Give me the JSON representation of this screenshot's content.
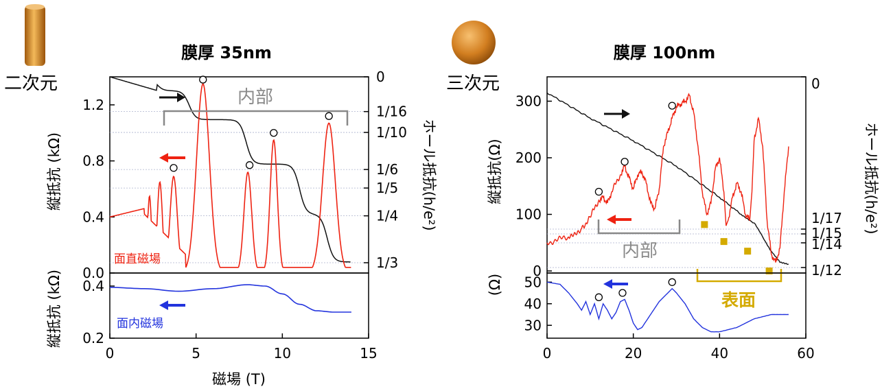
{
  "colors": {
    "red": "#ee2211",
    "black": "#111111",
    "blue": "#2233dd",
    "gray": "#888888",
    "gold": "#d4aa00",
    "ref_line": "#aab0cc"
  },
  "icons": {
    "left": "cylinder-copper-icon",
    "right": "sphere-copper-icon"
  },
  "chart_data": [
    {
      "type": "line",
      "title": "膜厚 35nm",
      "dimension_label": "二次元",
      "xlabel": "磁場 (T)",
      "xlim": [
        0,
        15
      ],
      "x_ticks": [
        "0",
        "5",
        "10",
        "15"
      ],
      "top_panel": {
        "ylabel": "縦抵抗 (kΩ)",
        "ylim": [
          0,
          1.4
        ],
        "y_ticks": [
          "0.0",
          "0.4",
          "0.8",
          "1.2"
        ],
        "right_ylabel": "ホール抵抗(h/e²)",
        "right_ticks": [
          "0",
          "1/16",
          "1/10",
          "1/6",
          "1/5",
          "1/4",
          "1/3"
        ],
        "series_labels": {
          "red": "面直磁場"
        },
        "annotation": "内部",
        "peaks_open_circles": [
          [
            3.7,
            0.75
          ],
          [
            5.4,
            1.38
          ],
          [
            8.1,
            0.77
          ],
          [
            9.5,
            1.0
          ],
          [
            12.7,
            1.12
          ]
        ],
        "peaks_red": [
          [
            2.3,
            0.55,
            0.15
          ],
          [
            2.9,
            0.65,
            0.2
          ],
          [
            3.7,
            0.69,
            0.28
          ],
          [
            5.4,
            1.35,
            0.5
          ],
          [
            8.0,
            0.72,
            0.3
          ],
          [
            9.5,
            0.95,
            0.28
          ],
          [
            12.7,
            1.07,
            0.5
          ]
        ],
        "hall_steps": [
          [
            2.7,
            0.025
          ],
          [
            4.6,
            0.077
          ],
          [
            7.9,
            0.157
          ],
          [
            11.0,
            0.247
          ],
          [
            12.6,
            0.333
          ]
        ]
      },
      "bottom_panel": {
        "ylabel": "縦抵抗 (kΩ)",
        "ylim": [
          0.2,
          0.45
        ],
        "y_ticks": [
          "0.2",
          "0.4"
        ],
        "series_labels": {
          "blue": "面内磁場"
        },
        "points": [
          [
            0,
            0.395
          ],
          [
            2,
            0.39
          ],
          [
            4,
            0.38
          ],
          [
            6,
            0.39
          ],
          [
            8,
            0.405
          ],
          [
            9,
            0.4
          ],
          [
            10,
            0.37
          ],
          [
            11,
            0.33
          ],
          [
            12,
            0.305
          ],
          [
            13,
            0.3
          ],
          [
            14,
            0.3
          ]
        ]
      }
    },
    {
      "type": "line",
      "title": "膜厚 100nm",
      "dimension_label": "三次元",
      "xlim": [
        0,
        60
      ],
      "x_ticks": [
        "0",
        "20",
        "40",
        "60"
      ],
      "top_panel": {
        "ylabel": "縦抵抗(Ω)",
        "ylim": [
          0,
          320
        ],
        "y_ticks": [
          "0",
          "100",
          "200",
          "300"
        ],
        "right_ylabel": "ホール抵抗(h/e²)",
        "right_ticks": [
          "0",
          "1/17",
          "1/15",
          "1/14",
          "1/12"
        ],
        "annotation_inner": "内部",
        "annotation_surface": "表面",
        "red_points": [
          [
            0,
            50
          ],
          [
            5,
            60
          ],
          [
            8,
            75
          ],
          [
            10,
            95
          ],
          [
            12,
            125
          ],
          [
            13,
            130
          ],
          [
            14,
            120
          ],
          [
            15,
            140
          ],
          [
            17,
            170
          ],
          [
            18,
            185
          ],
          [
            19,
            165
          ],
          [
            20,
            145
          ],
          [
            21,
            170
          ],
          [
            22,
            175
          ],
          [
            23,
            155
          ],
          [
            24,
            120
          ],
          [
            25,
            110
          ],
          [
            26,
            145
          ],
          [
            27,
            220
          ],
          [
            28,
            245
          ],
          [
            29,
            270
          ],
          [
            30,
            290
          ],
          [
            31,
            295
          ],
          [
            32,
            300
          ],
          [
            33,
            310
          ],
          [
            34,
            280
          ],
          [
            35,
            220
          ],
          [
            36,
            140
          ],
          [
            37,
            100
          ],
          [
            38,
            120
          ],
          [
            39,
            180
          ],
          [
            40,
            200
          ],
          [
            41,
            140
          ],
          [
            41.5,
            80
          ],
          [
            42,
            90
          ],
          [
            43,
            130
          ],
          [
            44,
            155
          ],
          [
            45,
            140
          ],
          [
            46,
            100
          ],
          [
            47,
            90
          ],
          [
            47.5,
            140
          ],
          [
            48,
            230
          ],
          [
            49,
            270
          ],
          [
            50,
            220
          ],
          [
            51,
            90
          ],
          [
            52,
            30
          ],
          [
            53,
            15
          ],
          [
            54,
            40
          ],
          [
            55,
            140
          ],
          [
            56,
            220
          ]
        ],
        "black_points": [
          [
            0,
            315
          ],
          [
            10,
            270
          ],
          [
            20,
            230
          ],
          [
            30,
            185
          ],
          [
            40,
            130
          ],
          [
            45,
            100
          ],
          [
            48,
            85
          ],
          [
            50,
            60
          ],
          [
            52,
            35
          ],
          [
            54,
            15
          ],
          [
            56,
            12
          ]
        ],
        "open_circles": [
          [
            12,
            140
          ],
          [
            18,
            193
          ],
          [
            29,
            292
          ]
        ],
        "gold_squares": [
          [
            36.5,
            82
          ],
          [
            41,
            52
          ],
          [
            46.5,
            35
          ],
          [
            51.5,
            0
          ]
        ]
      },
      "bottom_panel": {
        "ylabel": "(Ω)",
        "ylim": [
          25,
          52
        ],
        "y_ticks": [
          "30",
          "40",
          "50"
        ],
        "open_circles": [
          [
            12,
            43
          ],
          [
            17.5,
            45
          ],
          [
            29,
            50
          ]
        ],
        "blue_points": [
          [
            0,
            50
          ],
          [
            3,
            49
          ],
          [
            5,
            45
          ],
          [
            7,
            40
          ],
          [
            8,
            37
          ],
          [
            9,
            41
          ],
          [
            10,
            35
          ],
          [
            11,
            40
          ],
          [
            12,
            33
          ],
          [
            13,
            40
          ],
          [
            14,
            37
          ],
          [
            15,
            33
          ],
          [
            16,
            36
          ],
          [
            17,
            41
          ],
          [
            18,
            42
          ],
          [
            19,
            37
          ],
          [
            20,
            31
          ],
          [
            21,
            28
          ],
          [
            22,
            29
          ],
          [
            24,
            35
          ],
          [
            26,
            41
          ],
          [
            28,
            45
          ],
          [
            29,
            47
          ],
          [
            30,
            45
          ],
          [
            32,
            40
          ],
          [
            34,
            33
          ],
          [
            36,
            29
          ],
          [
            38,
            27
          ],
          [
            40,
            27
          ],
          [
            42,
            28
          ],
          [
            44,
            29
          ],
          [
            46,
            31
          ],
          [
            48,
            33
          ],
          [
            50,
            34
          ],
          [
            52,
            35
          ],
          [
            54,
            35
          ],
          [
            56,
            35
          ]
        ]
      }
    }
  ]
}
